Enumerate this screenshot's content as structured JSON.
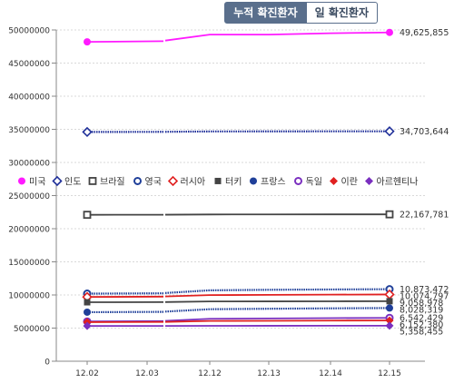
{
  "tabs": [
    {
      "label": "누적 확진환자",
      "active": true
    },
    {
      "label": "일 확진환자",
      "active": false
    }
  ],
  "chart_data": {
    "type": "line",
    "title": "",
    "xlabel": "",
    "ylabel": "",
    "categories": [
      "12.02",
      "12.03",
      "12.12",
      "12.13",
      "12.14",
      "12.15"
    ],
    "ylim": [
      0,
      50000000
    ],
    "yticks": [
      0,
      5000000,
      10000000,
      15000000,
      20000000,
      25000000,
      30000000,
      35000000,
      40000000,
      45000000,
      50000000
    ],
    "ytick_labels": [
      "0",
      "5000000",
      "10000000",
      "15000000",
      "20000000",
      "25000000",
      "30000000",
      "35000000",
      "40000000",
      "45000000",
      "50000000"
    ],
    "grid": true,
    "legend_position": "middle",
    "series": [
      {
        "name": "미국",
        "color": "#ff1aff",
        "marker": "circle-filled",
        "style": "solid",
        "values": [
          48200000,
          48300000,
          49300000,
          49300000,
          49500000,
          49625855
        ],
        "end_label": "49,625,855"
      },
      {
        "name": "인도",
        "color": "#1f2f99",
        "marker": "diamond-open",
        "style": "dotted",
        "values": [
          34600000,
          34620000,
          34680000,
          34690000,
          34700000,
          34703644
        ],
        "end_label": "34,703,644"
      },
      {
        "name": "브라질",
        "color": "#444444",
        "marker": "square-open",
        "style": "solid",
        "values": [
          22100000,
          22110000,
          22150000,
          22160000,
          22165000,
          22167781
        ],
        "end_label": "22,167,781"
      },
      {
        "name": "영국",
        "color": "#1f3f99",
        "marker": "circle-open",
        "style": "dotted",
        "values": [
          10200000,
          10250000,
          10700000,
          10780000,
          10830000,
          10873472
        ],
        "end_label": "10,873,472"
      },
      {
        "name": "러시아",
        "color": "#e02020",
        "marker": "diamond-open",
        "style": "solid",
        "values": [
          9700000,
          9750000,
          9980000,
          10020000,
          10050000,
          10074797
        ],
        "end_label": "10,074,797"
      },
      {
        "name": "터키",
        "color": "#444444",
        "marker": "square-filled",
        "style": "solid",
        "values": [
          8900000,
          8920000,
          9020000,
          9030000,
          9045000,
          9058978
        ],
        "end_label": "9,058,978"
      },
      {
        "name": "프랑스",
        "color": "#1f3f99",
        "marker": "circle-filled",
        "style": "dotted",
        "values": [
          7400000,
          7450000,
          7850000,
          7920000,
          7980000,
          8028319
        ],
        "end_label": "8,028,319"
      },
      {
        "name": "독일",
        "color": "#7a2fbf",
        "marker": "circle-open",
        "style": "solid",
        "values": [
          6000000,
          6050000,
          6400000,
          6460000,
          6510000,
          6542429
        ],
        "end_label": "6,542,429"
      },
      {
        "name": "이란",
        "color": "#e02020",
        "marker": "diamond-filled",
        "style": "solid",
        "values": [
          5900000,
          5920000,
          6080000,
          6100000,
          6130000,
          6152380
        ],
        "end_label": "6,152,380"
      },
      {
        "name": "아르헨티나",
        "color": "#7a2fbf",
        "marker": "diamond-filled",
        "style": "solid",
        "values": [
          5320000,
          5325000,
          5345000,
          5350000,
          5355000,
          5358455
        ],
        "end_label": "5,358,455"
      }
    ]
  }
}
